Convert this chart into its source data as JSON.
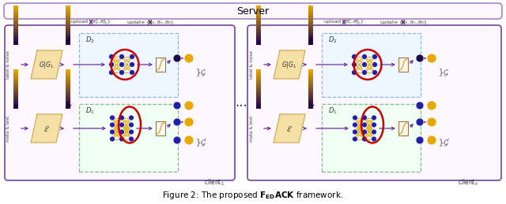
{
  "title": "Server",
  "caption_prefix": "Figure 2: The proposed ",
  "caption_bold": "F",
  "caption_rest": "framework.",
  "bg_color": "#ffffff",
  "server_fc": "#fdf8ff",
  "server_ec": "#b090c8",
  "client_fc": "#fdf8ff",
  "client_ec": "#7b52a6",
  "d2_fc": "#eef6ff",
  "d2_ec": "#88bbdd",
  "d1_fc": "#f0fff4",
  "d1_ec": "#88bb88",
  "arrow_color": "#7030a0",
  "node_blue": "#2020aa",
  "node_gold": "#e8a800",
  "node_dark": "#1a0a4a",
  "net_line": "#e8a800",
  "red_oval": "#cc0000",
  "grad_dark": "#1a0050",
  "grad_light": "#e8a000",
  "book_color": "#f5dfa0",
  "book_edge": "#ccaa60",
  "proj_fc": "#fff8ee",
  "proj_ec": "#997744",
  "text_color": "#000000",
  "label_color": "#444444"
}
